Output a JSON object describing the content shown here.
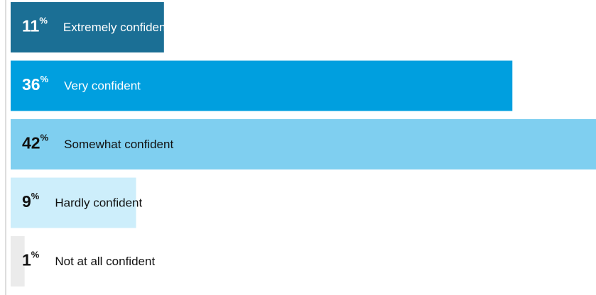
{
  "chart_data": {
    "type": "hbar",
    "categories": [
      "Extremely confident",
      "Very confident",
      "Somewhat confident",
      "Hardly confident",
      "Not at all confident"
    ],
    "values": [
      11,
      36,
      42,
      9,
      1
    ],
    "unit": "%",
    "colors": [
      "#1b6f95",
      "#009fdf",
      "#7fcff0",
      "#cdeefb",
      "#ebebeb"
    ],
    "text_colors": [
      "#ffffff",
      "#ffffff",
      "#111111",
      "#111111",
      "#111111"
    ]
  }
}
